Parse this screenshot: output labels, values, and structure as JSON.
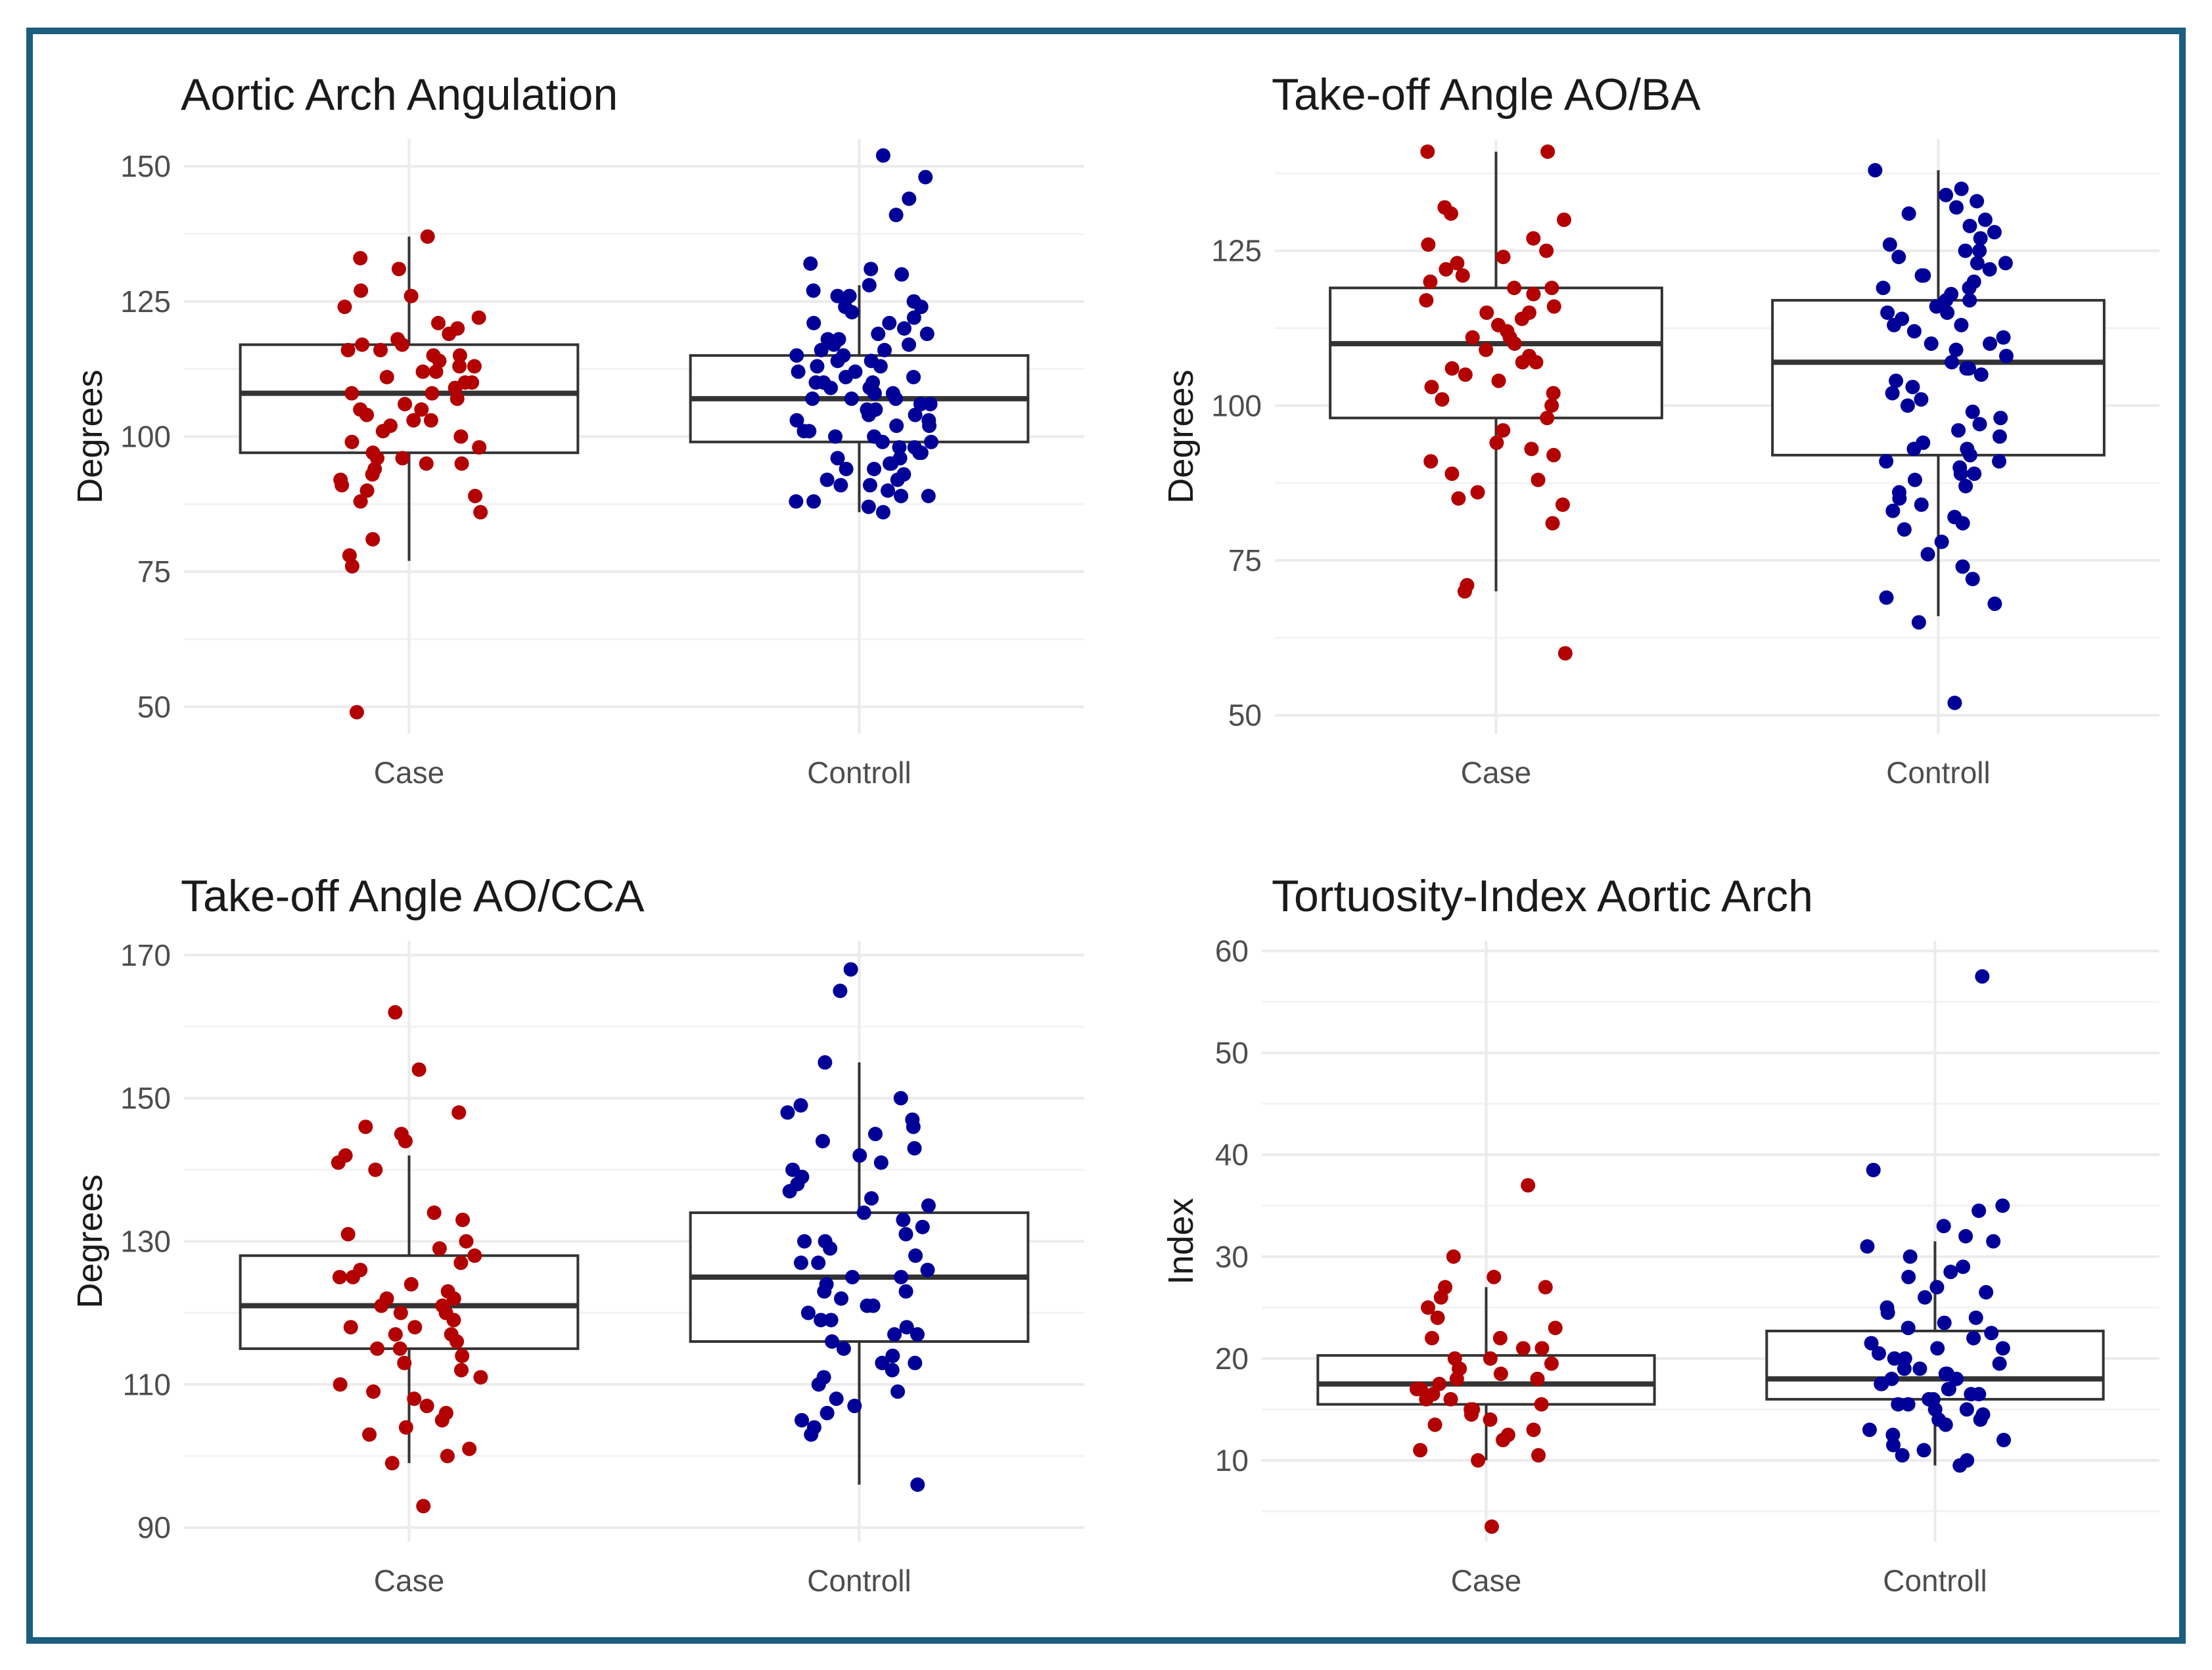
{
  "colors": {
    "frame": "#1b5e7e",
    "case": "#b30000",
    "control": "#000099"
  },
  "chart_data": [
    {
      "type": "boxplot",
      "title": "Aortic Arch Angulation",
      "ylabel": "Degrees",
      "xlabel": "",
      "categories": [
        "Case",
        "Controll"
      ],
      "ylim": [
        45,
        155
      ],
      "yticks": [
        50,
        75,
        100,
        125,
        150
      ],
      "boxes": [
        {
          "name": "Case",
          "whisker_low": 77,
          "q1": 97,
          "median": 108,
          "q3": 117,
          "whisker_high": 137,
          "points": [
            137,
            133,
            131,
            127,
            126,
            124,
            122,
            121,
            120,
            119,
            118,
            117,
            117,
            116,
            116,
            115,
            115,
            114,
            113,
            113,
            112,
            112,
            111,
            110,
            110,
            109,
            108,
            108,
            107,
            106,
            105,
            105,
            104,
            103,
            103,
            102,
            101,
            100,
            99,
            98,
            97,
            96,
            96,
            95,
            95,
            94,
            93,
            92,
            91,
            90,
            89,
            88,
            86,
            81,
            78,
            76,
            49
          ]
        },
        {
          "name": "Controll",
          "whisker_low": 86,
          "q1": 99,
          "median": 107,
          "q3": 115,
          "whisker_high": 128,
          "points": [
            152,
            148,
            144,
            141,
            132,
            131,
            130,
            128,
            127,
            126,
            126,
            125,
            124,
            124,
            123,
            122,
            121,
            121,
            120,
            119,
            119,
            118,
            118,
            117,
            117,
            116,
            116,
            115,
            115,
            114,
            114,
            113,
            113,
            112,
            112,
            111,
            111,
            110,
            110,
            110,
            109,
            109,
            108,
            108,
            107,
            107,
            107,
            106,
            106,
            105,
            105,
            104,
            104,
            103,
            103,
            102,
            102,
            101,
            101,
            100,
            100,
            99,
            99,
            98,
            98,
            97,
            97,
            96,
            96,
            95,
            95,
            94,
            94,
            93,
            92,
            92,
            91,
            91,
            90,
            89,
            89,
            88,
            88,
            87,
            86
          ]
        }
      ]
    },
    {
      "type": "boxplot",
      "title": "Take-off Angle AO/BA",
      "ylabel": "Degrees",
      "xlabel": "",
      "categories": [
        "Case",
        "Controll"
      ],
      "ylim": [
        47,
        143
      ],
      "yticks": [
        50,
        75,
        100,
        125
      ],
      "boxes": [
        {
          "name": "Case",
          "whisker_low": 70,
          "q1": 98,
          "median": 110,
          "q3": 119,
          "whisker_high": 141,
          "points": [
            141,
            141,
            132,
            131,
            130,
            127,
            126,
            125,
            124,
            123,
            122,
            121,
            120,
            119,
            119,
            118,
            117,
            116,
            115,
            115,
            114,
            113,
            112,
            111,
            111,
            110,
            109,
            108,
            107,
            107,
            106,
            105,
            104,
            103,
            102,
            101,
            100,
            98,
            96,
            94,
            93,
            92,
            91,
            89,
            88,
            86,
            85,
            84,
            81,
            71,
            70,
            60
          ]
        },
        {
          "name": "Controll",
          "whisker_low": 66,
          "q1": 92,
          "median": 107,
          "q3": 117,
          "whisker_high": 138,
          "points": [
            138,
            135,
            134,
            133,
            132,
            131,
            130,
            129,
            128,
            127,
            126,
            125,
            125,
            124,
            123,
            123,
            122,
            121,
            121,
            120,
            119,
            119,
            118,
            117,
            117,
            116,
            115,
            115,
            114,
            113,
            113,
            112,
            111,
            110,
            110,
            109,
            108,
            107,
            106,
            106,
            105,
            104,
            103,
            102,
            101,
            100,
            99,
            98,
            97,
            96,
            95,
            94,
            93,
            93,
            92,
            91,
            91,
            90,
            89,
            89,
            88,
            87,
            86,
            85,
            84,
            83,
            82,
            81,
            80,
            78,
            76,
            74,
            72,
            69,
            68,
            65,
            52
          ]
        }
      ]
    },
    {
      "type": "boxplot",
      "title": "Take-off Angle AO/CCA",
      "ylabel": "Degrees",
      "xlabel": "",
      "categories": [
        "Case",
        "Controll"
      ],
      "ylim": [
        88,
        172
      ],
      "yticks": [
        90,
        110,
        130,
        150,
        170
      ],
      "boxes": [
        {
          "name": "Case",
          "whisker_low": 99,
          "q1": 115,
          "median": 121,
          "q3": 128,
          "whisker_high": 142,
          "points": [
            162,
            154,
            148,
            146,
            145,
            144,
            142,
            141,
            140,
            134,
            133,
            131,
            130,
            129,
            128,
            127,
            126,
            125,
            125,
            124,
            123,
            122,
            122,
            121,
            121,
            120,
            120,
            119,
            118,
            118,
            117,
            117,
            116,
            115,
            115,
            114,
            113,
            112,
            111,
            110,
            109,
            108,
            107,
            106,
            105,
            104,
            103,
            101,
            100,
            99,
            93
          ]
        },
        {
          "name": "Controll",
          "whisker_low": 96,
          "q1": 116,
          "median": 125,
          "q3": 134,
          "whisker_high": 155,
          "points": [
            168,
            165,
            155,
            150,
            149,
            148,
            147,
            146,
            145,
            144,
            143,
            142,
            141,
            140,
            139,
            138,
            137,
            136,
            135,
            134,
            133,
            132,
            131,
            130,
            130,
            129,
            128,
            127,
            127,
            126,
            125,
            125,
            124,
            123,
            123,
            122,
            121,
            121,
            120,
            119,
            119,
            118,
            117,
            117,
            116,
            115,
            114,
            113,
            113,
            112,
            111,
            110,
            109,
            108,
            107,
            106,
            105,
            104,
            103,
            96
          ]
        }
      ]
    },
    {
      "type": "boxplot",
      "title": "Tortuosity-Index Aortic Arch",
      "ylabel": "Index",
      "xlabel": "",
      "categories": [
        "Case",
        "Controll"
      ],
      "ylim": [
        2,
        61
      ],
      "yticks": [
        10,
        20,
        30,
        40,
        50,
        60
      ],
      "boxes": [
        {
          "name": "Case",
          "whisker_low": 10,
          "q1": 15.5,
          "median": 17.5,
          "q3": 20.3,
          "whisker_high": 27,
          "points": [
            37,
            30,
            28,
            27,
            27,
            26,
            25,
            24,
            23,
            22,
            22,
            21,
            21,
            20,
            20,
            19.5,
            19,
            19,
            18.5,
            18,
            18,
            17.5,
            17,
            17,
            16.5,
            16,
            16,
            15.5,
            15,
            15,
            14.5,
            14,
            13.5,
            13,
            12.5,
            12,
            11,
            10.5,
            10,
            3.5
          ]
        },
        {
          "name": "Controll",
          "whisker_low": 9.5,
          "q1": 16,
          "median": 18,
          "q3": 22.7,
          "whisker_high": 31.5,
          "points": [
            57.5,
            38.5,
            35,
            34.5,
            33,
            32,
            31.5,
            31,
            30,
            29,
            28.5,
            28,
            27,
            26.5,
            26,
            25,
            24.5,
            24,
            23.5,
            23,
            22.5,
            22,
            21.5,
            21,
            21,
            20.5,
            20,
            20,
            19.5,
            19,
            19,
            18.5,
            18.5,
            18,
            18,
            17.5,
            17.5,
            17,
            17,
            16.5,
            16.5,
            16,
            16,
            15.5,
            15.5,
            15,
            15,
            14.5,
            14,
            14,
            13.5,
            13,
            12.5,
            12,
            11.5,
            11,
            10.5,
            10,
            9.5
          ]
        }
      ]
    }
  ]
}
